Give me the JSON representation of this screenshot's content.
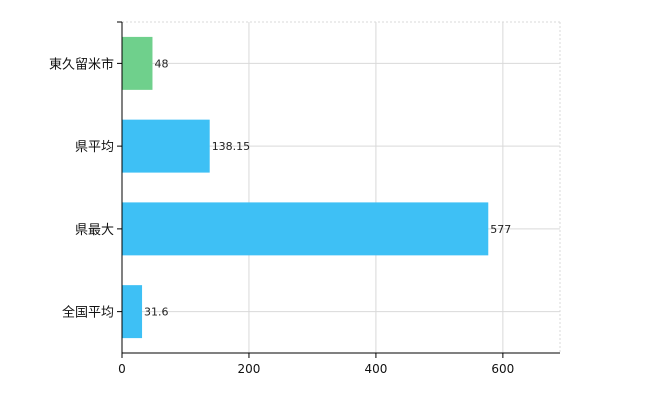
{
  "chart_data": {
    "type": "bar",
    "orientation": "horizontal",
    "categories": [
      "東久留米市",
      "県平均",
      "県最大",
      "全国平均"
    ],
    "values": [
      48,
      138.15,
      577,
      31.6
    ],
    "value_labels": [
      "48",
      "138.15",
      "577",
      "31.6"
    ],
    "bar_colors": [
      "#6fd08c",
      "#3ec0f5",
      "#3ec0f5",
      "#3ec0f5"
    ],
    "xlim": [
      0,
      690
    ],
    "x_ticks": [
      0,
      200,
      400,
      600
    ],
    "title": "",
    "xlabel": "",
    "ylabel": "",
    "grid": true,
    "legend": "none"
  }
}
